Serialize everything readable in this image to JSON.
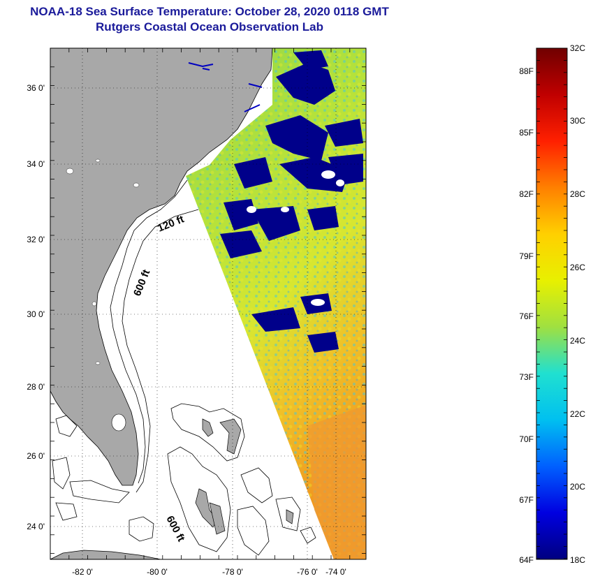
{
  "title": {
    "line1": "NOAA-18 Sea Surface Temperature:  October 28, 2020 0118 GMT",
    "line2": "Rutgers Coastal Ocean Observation Lab"
  },
  "map": {
    "lon_ticks": [
      "-82 0'",
      "-80 0'",
      "-78 0'",
      "-76 0'",
      "-74 0'"
    ],
    "lat_ticks": [
      "36 0'",
      "34 0'",
      "32 0'",
      "30 0'",
      "28 0'",
      "26 0'",
      "24 0'"
    ],
    "contours": [
      {
        "label": "120 ft"
      },
      {
        "label": "600 ft"
      },
      {
        "label": "600 ft"
      }
    ],
    "colors": {
      "land": "#a8a8a8",
      "no_data": "#ffffff",
      "cloud": "#00008a",
      "warm_sst": "#9fdc3c",
      "hot_sst": "#f0a020"
    }
  },
  "colorbar": {
    "fahrenheit_labels": [
      "88F",
      "85F",
      "82F",
      "79F",
      "76F",
      "73F",
      "70F",
      "67F",
      "64F"
    ],
    "celsius_labels": [
      "32C",
      "30C",
      "28C",
      "26C",
      "24C",
      "22C",
      "20C",
      "18C"
    ],
    "gradient_stops": [
      "#700000",
      "#c00000",
      "#ff2000",
      "#ff8000",
      "#ffd000",
      "#e8f000",
      "#a0e040",
      "#20e0d0",
      "#00c0f0",
      "#0060ff",
      "#0000e0",
      "#000080"
    ]
  }
}
